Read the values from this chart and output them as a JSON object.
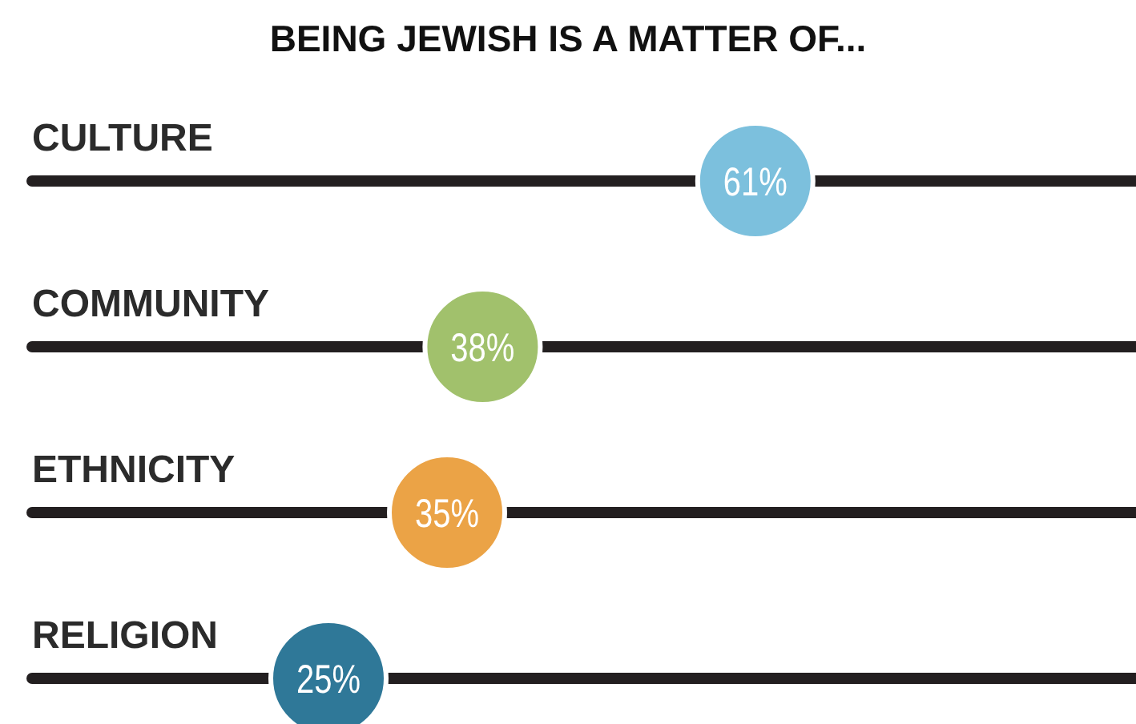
{
  "chart_data": {
    "type": "scatter",
    "orientation": "horizontal",
    "title": "BEING JEWISH IS A MATTER OF...",
    "categories": [
      "CULTURE",
      "COMMUNITY",
      "ETHNICITY",
      "RELIGION"
    ],
    "values": [
      61,
      38,
      35,
      25
    ],
    "colors": [
      "#7cc0dd",
      "#a1c16c",
      "#eba346",
      "#2f7898"
    ],
    "xlim": [
      0,
      100
    ],
    "data_labels": true,
    "value_labels": [
      "61%",
      "38%",
      "35%",
      "25%"
    ]
  }
}
